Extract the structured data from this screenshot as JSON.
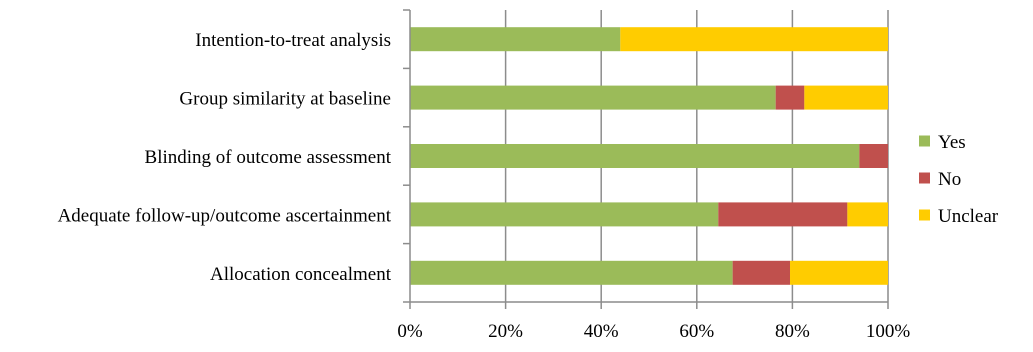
{
  "chart_data": {
    "type": "bar",
    "orientation": "horizontal",
    "stacked": "percent",
    "categories": [
      "Intention-to-treat analysis",
      "Group similarity at baseline",
      "Blinding of outcome assessment",
      "Adequate follow-up/outcome ascertainment",
      "Allocation concealment"
    ],
    "series": [
      {
        "name": "Yes",
        "color": "#9bbb59",
        "values": [
          44,
          76.5,
          94,
          64.5,
          67.5
        ]
      },
      {
        "name": "No",
        "color": "#c0504d",
        "values": [
          0,
          6,
          6,
          27,
          12
        ]
      },
      {
        "name": "Unclear",
        "color": "#ffcc00",
        "values": [
          56,
          17.5,
          0,
          8.5,
          20.5
        ]
      }
    ],
    "xlim": [
      0,
      100
    ],
    "xticks": [
      "0%",
      "20%",
      "40%",
      "60%",
      "80%",
      "100%"
    ],
    "grid": "vertical",
    "legend": "right",
    "title": "",
    "xlabel": "",
    "ylabel": ""
  }
}
